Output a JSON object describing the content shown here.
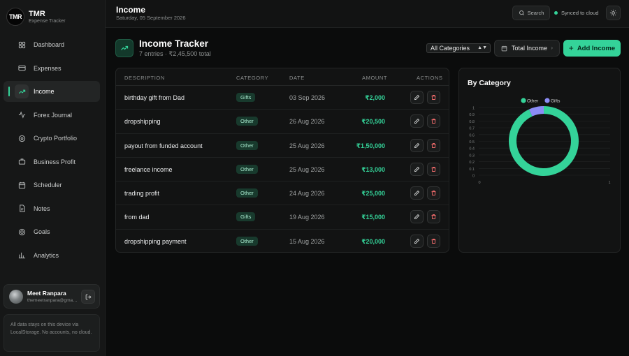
{
  "brand": {
    "logo_text": "TMR",
    "name": "TMR",
    "subtitle": "Expense Tracker"
  },
  "sidebar": {
    "items": [
      {
        "label": "Dashboard",
        "icon": "grid-icon"
      },
      {
        "label": "Expenses",
        "icon": "card-icon"
      },
      {
        "label": "Income",
        "icon": "trending-up-icon",
        "active": true
      },
      {
        "label": "Forex Journal",
        "icon": "pulse-icon"
      },
      {
        "label": "Crypto Portfolio",
        "icon": "coin-icon"
      },
      {
        "label": "Business Profit",
        "icon": "briefcase-icon"
      },
      {
        "label": "Scheduler",
        "icon": "calendar-icon"
      },
      {
        "label": "Notes",
        "icon": "note-icon"
      },
      {
        "label": "Goals",
        "icon": "target-icon"
      },
      {
        "label": "Analytics",
        "icon": "bar-chart-icon"
      }
    ]
  },
  "user": {
    "name": "Meet Ranpara",
    "email": "themeetranpara@gmail.com"
  },
  "storage_note": "All data stays on this device via LocalStorage. No accounts, no cloud.",
  "header": {
    "title": "Income",
    "date": "Saturday, 05 September 2026",
    "search_label": "Search",
    "sync_status": "Synced to cloud"
  },
  "section": {
    "title": "Income Tracker",
    "subtitle": "7 entries · ₹2,45,500 total",
    "category_filter": "All Categories",
    "total_button": "Total Income",
    "add_button": "Add Income"
  },
  "table": {
    "columns": [
      "DESCRIPTION",
      "CATEGORY",
      "DATE",
      "AMOUNT",
      "ACTIONS"
    ],
    "rows": [
      {
        "description": "birthday gift from Dad",
        "category": "Gifts",
        "date": "03 Sep 2026",
        "amount": "₹2,000"
      },
      {
        "description": "dropshipping",
        "category": "Other",
        "date": "26 Aug 2026",
        "amount": "₹20,500"
      },
      {
        "description": "payout from funded account",
        "category": "Other",
        "date": "25 Aug 2026",
        "amount": "₹1,50,000"
      },
      {
        "description": "freelance income",
        "category": "Other",
        "date": "25 Aug 2026",
        "amount": "₹13,000"
      },
      {
        "description": "trading profit",
        "category": "Other",
        "date": "24 Aug 2026",
        "amount": "₹25,000"
      },
      {
        "description": "from dad",
        "category": "Gifts",
        "date": "19 Aug 2026",
        "amount": "₹15,000"
      },
      {
        "description": "dropshipping payment",
        "category": "Other",
        "date": "15 Aug 2026",
        "amount": "₹20,000"
      }
    ]
  },
  "chart_title": "By Category",
  "chart_data": {
    "type": "pie",
    "categories": [
      "Other",
      "Gifts"
    ],
    "values": [
      228500,
      17000
    ],
    "colors": [
      "#34d399",
      "#8b8cf5"
    ],
    "legend": "top",
    "y_ticks": [
      "1",
      "0.9",
      "0.8",
      "0.7",
      "0.6",
      "0.5",
      "0.4",
      "0.3",
      "0.2",
      "0.1",
      "0"
    ],
    "x_ticks": [
      "0",
      "1"
    ]
  },
  "colors": {
    "accent": "#34d399",
    "delete": "#f26b6b",
    "gifts": "#8b8cf5"
  }
}
